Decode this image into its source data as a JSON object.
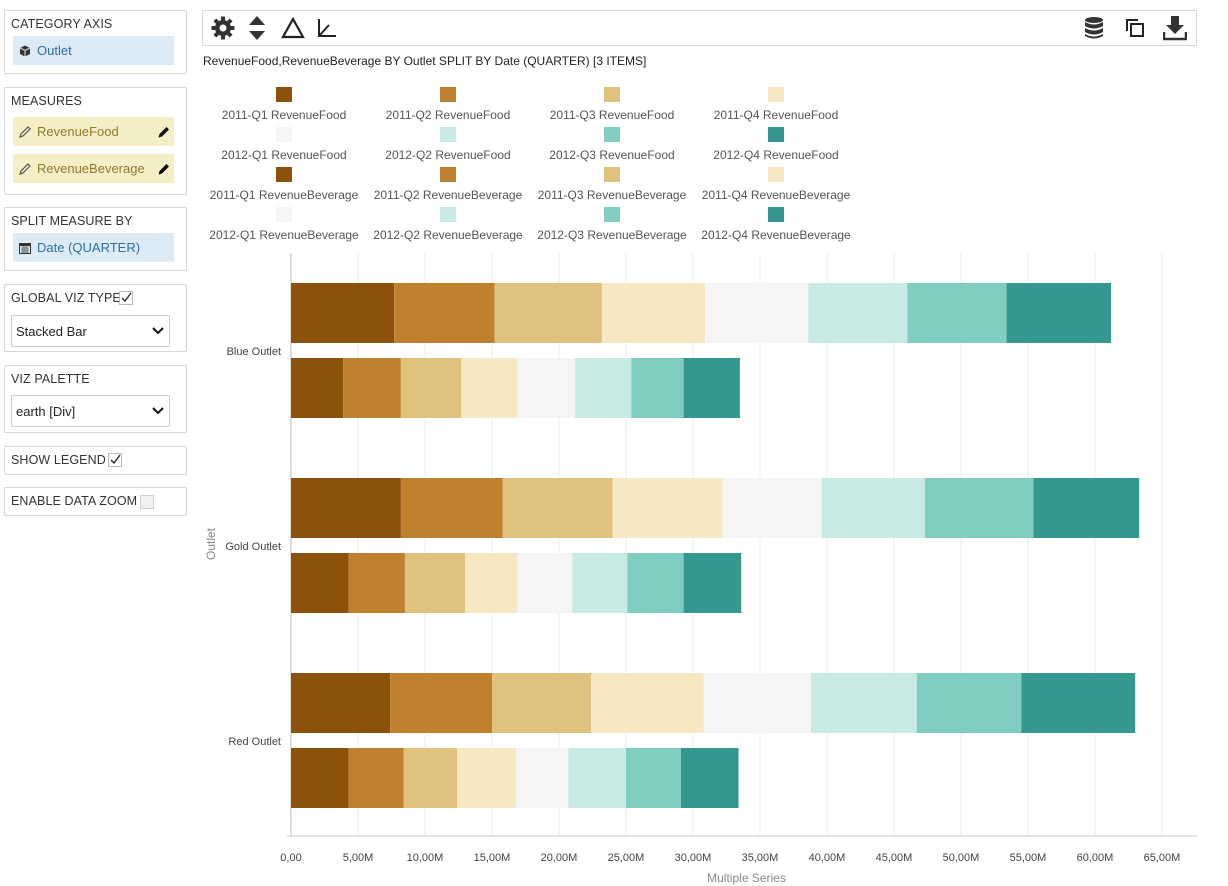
{
  "sidebar": {
    "category_axis": {
      "title": "CATEGORY AXIS",
      "value": "Outlet",
      "icon": "cube-icon"
    },
    "measures": {
      "title": "MEASURES",
      "items": [
        "RevenueFood",
        "RevenueBeverage"
      ],
      "icon": "pencil-icon"
    },
    "split_measure_by": {
      "title": "SPLIT MEASURE BY",
      "value": "Date (QUARTER)",
      "icon": "calendar-icon"
    },
    "global_viz_type": {
      "title": "GLOBAL VIZ TYPE",
      "value": "Stacked Bar",
      "checked": true
    },
    "viz_palette": {
      "title": "VIZ PALETTE",
      "value": "earth [Div]"
    },
    "show_legend": {
      "title": "SHOW LEGEND",
      "checked": true
    },
    "enable_data_zoom": {
      "title": "ENABLE DATA ZOOM",
      "checked": false
    }
  },
  "toolbar": {
    "left_icons": [
      "gear-icon",
      "sort-icon",
      "triangle-icon",
      "axis-icon"
    ],
    "right_icons": [
      "database-icon",
      "copy-icon",
      "download-icon"
    ]
  },
  "viz_title": "RevenueFood,RevenueBeverage BY Outlet SPLIT BY Date (QUARTER) [3 ITEMS]",
  "chart_data": {
    "type": "bar",
    "orientation": "horizontal",
    "stacked": true,
    "categories": [
      "Blue Outlet",
      "Gold Outlet",
      "Red Outlet"
    ],
    "xlabel": "Multiple Series",
    "ylabel": "Outlet",
    "xlim": [
      0,
      67500000
    ],
    "x_ticks": [
      "0,00",
      "5,00M",
      "10,00M",
      "15,00M",
      "20,00M",
      "25,00M",
      "30,00M",
      "35,00M",
      "40,00M",
      "45,00M",
      "50,00M",
      "55,00M",
      "60,00M",
      "65,00M"
    ],
    "grid": true,
    "legend_position": "top",
    "colors": [
      "#8c510a",
      "#bf812d",
      "#dfc27d",
      "#f6e8c3",
      "#f5f5f5",
      "#c7eae5",
      "#80cdc1",
      "#35978f"
    ],
    "quarters": [
      "2011-Q1",
      "2011-Q2",
      "2011-Q3",
      "2011-Q4",
      "2012-Q1",
      "2012-Q2",
      "2012-Q3",
      "2012-Q4"
    ],
    "series": [
      {
        "measure": "RevenueFood",
        "names": [
          "2011-Q1 RevenueFood",
          "2011-Q2 RevenueFood",
          "2011-Q3 RevenueFood",
          "2011-Q4 RevenueFood",
          "2012-Q1 RevenueFood",
          "2012-Q2 RevenueFood",
          "2012-Q3 RevenueFood",
          "2012-Q4 RevenueFood"
        ],
        "values": {
          "Blue Outlet": [
            7.7,
            7.5,
            8.0,
            7.7,
            7.7,
            7.4,
            7.4,
            7.8
          ],
          "Gold Outlet": [
            8.2,
            7.6,
            8.2,
            8.2,
            7.4,
            7.7,
            8.1,
            7.9
          ],
          "Red Outlet": [
            7.4,
            7.6,
            7.4,
            8.4,
            8.0,
            7.9,
            7.8,
            8.5
          ]
        },
        "unit": "M"
      },
      {
        "measure": "RevenueBeverage",
        "names": [
          "2011-Q1 RevenueBeverage",
          "2011-Q2 RevenueBeverage",
          "2011-Q3 RevenueBeverage",
          "2011-Q4 RevenueBeverage",
          "2012-Q1 RevenueBeverage",
          "2012-Q2 RevenueBeverage",
          "2012-Q3 RevenueBeverage",
          "2012-Q4 RevenueBeverage"
        ],
        "values": {
          "Blue Outlet": [
            3.9,
            4.3,
            4.5,
            4.2,
            4.3,
            4.2,
            3.9,
            4.2
          ],
          "Gold Outlet": [
            4.3,
            4.2,
            4.5,
            3.9,
            4.1,
            4.1,
            4.2,
            4.3
          ],
          "Red Outlet": [
            4.3,
            4.1,
            4.0,
            4.4,
            3.9,
            4.3,
            4.1,
            4.3
          ]
        },
        "unit": "M"
      }
    ]
  }
}
